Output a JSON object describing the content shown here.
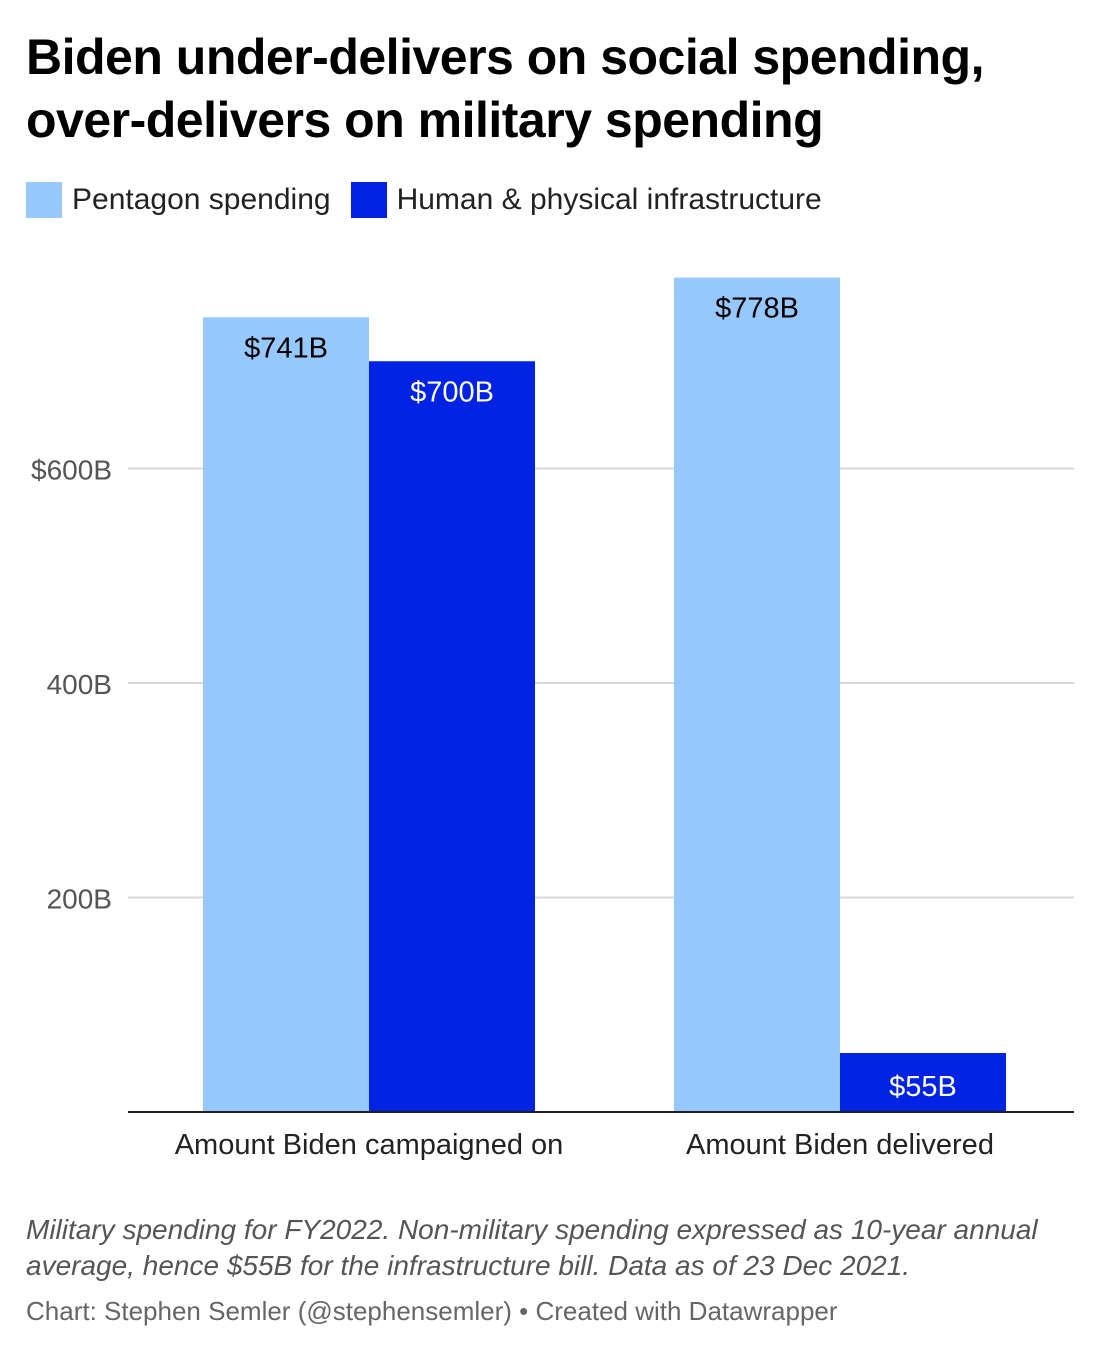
{
  "title": "Biden under-delivers on social spending, over-delivers on military spending",
  "legend": [
    {
      "label": "Pentagon spending",
      "color": "#96c7fd"
    },
    {
      "label": "Human & physical infrastructure",
      "color": "#0022e3"
    }
  ],
  "chart_data": {
    "type": "bar",
    "categories": [
      "Amount Biden campaigned on",
      "Amount Biden delivered"
    ],
    "series": [
      {
        "name": "Pentagon spending",
        "values": [
          741,
          778
        ],
        "labels": [
          "$741B",
          "$778B"
        ],
        "color": "#96c7fd",
        "label_color": "#000000"
      },
      {
        "name": "Human & physical infrastructure",
        "values": [
          700,
          55
        ],
        "labels": [
          "$700B",
          "$55B"
        ],
        "color": "#0022e3",
        "label_color": "#ffffff"
      }
    ],
    "yticks": [
      200,
      400,
      600
    ],
    "ytick_labels": [
      "200B",
      "400B",
      "$600B"
    ],
    "ylim": [
      0,
      800
    ],
    "grid": true,
    "xlabel": "",
    "ylabel": ""
  },
  "note": "Military spending for FY2022. Non-military spending expressed as 10-year annual average, hence $55B for the infrastructure bill. Data as of 23 Dec 2021.",
  "credit": "Chart: Stephen Semler (@stephensemler) • Created with Datawrapper"
}
